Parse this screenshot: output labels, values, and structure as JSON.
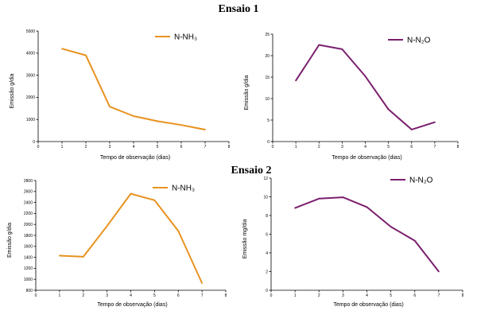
{
  "figure": {
    "section_titles": [
      "Ensaio 1",
      "Ensaio 2"
    ]
  },
  "chart_data": [
    {
      "type": "line",
      "section": "Ensaio 1",
      "x": [
        1,
        2,
        3,
        4,
        5,
        6,
        7
      ],
      "series": [
        {
          "name": "N-NH3",
          "values": [
            4200,
            3900,
            1580,
            1150,
            920,
            750,
            540
          ],
          "color": "#E8921E"
        }
      ],
      "legend_label": "N-NH₃",
      "xlabel": "Tempo de observação (dias)",
      "ylabel": "Emissão g/dia",
      "xlim": [
        0,
        8
      ],
      "ylim": [
        0,
        5000
      ],
      "xticks": [
        0,
        1,
        2,
        3,
        4,
        5,
        6,
        7,
        8
      ],
      "yticks": [
        0,
        1000,
        2000,
        3000,
        4000,
        5000
      ]
    },
    {
      "type": "line",
      "section": "Ensaio 1",
      "x": [
        1,
        2,
        3,
        4,
        5,
        6,
        7
      ],
      "series": [
        {
          "name": "N-N2O",
          "values": [
            14.2,
            22.5,
            21.5,
            15.2,
            7.5,
            2.8,
            4.5
          ],
          "color": "#7B1F6E"
        }
      ],
      "legend_label": "N-N₂O",
      "xlabel": "Tempo de observação (dias)",
      "ylabel": "Emissão g/dia",
      "xlim": [
        0,
        8
      ],
      "ylim": [
        0,
        25
      ],
      "xticks": [
        0,
        1,
        2,
        3,
        4,
        5,
        6,
        7,
        8
      ],
      "yticks": [
        0,
        5,
        10,
        15,
        20,
        25
      ]
    },
    {
      "type": "line",
      "section": "Ensaio 2",
      "x": [
        1,
        2,
        3,
        4,
        5,
        6,
        7
      ],
      "series": [
        {
          "name": "N-NH3",
          "values": [
            1430,
            1410,
            1970,
            2560,
            2440,
            1880,
            930
          ],
          "color": "#E8921E"
        }
      ],
      "legend_label": "N-NH₃",
      "xlabel": "Tempo de observação (dias)",
      "ylabel": "Emissão g/dia",
      "xlim": [
        0,
        8
      ],
      "ylim": [
        800,
        2800
      ],
      "xticks": [
        0,
        1,
        2,
        3,
        4,
        5,
        6,
        7,
        8
      ],
      "yticks": [
        800,
        1000,
        1200,
        1400,
        1600,
        1800,
        2000,
        2200,
        2400,
        2600,
        2800
      ]
    },
    {
      "type": "line",
      "section": "Ensaio 2",
      "x": [
        1,
        2,
        3,
        4,
        5,
        6,
        7
      ],
      "series": [
        {
          "name": "N-N2O",
          "values": [
            8.8,
            9.8,
            9.95,
            8.9,
            6.8,
            5.3,
            2.0
          ],
          "color": "#7B1F6E"
        }
      ],
      "legend_label": "N-N₂O",
      "xlabel": "Tempo de observação (dias)",
      "ylabel": "Emissão mg/dia",
      "xlim": [
        0,
        8
      ],
      "ylim": [
        0,
        12
      ],
      "xticks": [
        0,
        1,
        2,
        3,
        4,
        5,
        6,
        7,
        8
      ],
      "yticks": [
        0,
        2,
        4,
        6,
        8,
        10,
        12
      ]
    }
  ]
}
